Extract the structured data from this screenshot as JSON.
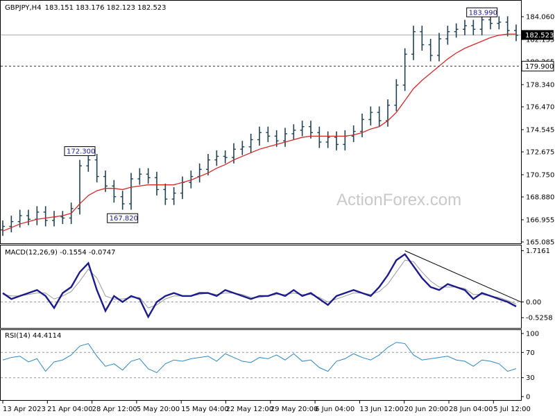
{
  "chart_data": [
    {
      "type": "candlestick",
      "panel": "price",
      "symbol_label": "GBPJPY,H4",
      "ohlc_label": "183.151 183.176 182.123 182.523",
      "ylim": [
        165.085,
        185.0
      ],
      "y_ticks": [
        "184.060",
        "182.135",
        "180.265",
        "178.340",
        "176.470",
        "174.545",
        "172.675",
        "170.750",
        "168.880",
        "166.955",
        "165.085"
      ],
      "price_marker": {
        "label": "182.523",
        "value": 182.523
      },
      "level_line": {
        "label": "179.900",
        "value": 179.9
      },
      "annotations": [
        {
          "label": "172.300",
          "value": 172.3,
          "index": 9
        },
        {
          "label": "167.820",
          "value": 167.82,
          "index": 14
        },
        {
          "label": "183.990",
          "value": 183.99,
          "index": 56
        }
      ],
      "close": [
        166.4,
        166.8,
        167.3,
        167.0,
        167.6,
        166.9,
        167.2,
        167.1,
        167.9,
        171.5,
        172.0,
        170.6,
        169.8,
        168.9,
        168.3,
        170.4,
        170.8,
        170.5,
        169.5,
        168.7,
        169.2,
        170.1,
        170.6,
        171.2,
        172.0,
        172.3,
        172.2,
        172.9,
        173.1,
        173.7,
        174.3,
        174.0,
        173.6,
        174.2,
        174.5,
        174.8,
        174.3,
        173.5,
        173.9,
        173.3,
        174.0,
        174.4,
        175.4,
        176.0,
        175.3,
        176.6,
        178.3,
        180.9,
        182.8,
        181.7,
        180.8,
        182.2,
        182.8,
        183.0,
        183.3,
        183.0,
        183.8,
        183.5,
        183.6,
        182.9,
        182.5
      ],
      "moving_average": [
        166.0,
        166.3,
        166.6,
        166.8,
        167.0,
        167.1,
        167.2,
        167.3,
        167.5,
        168.3,
        169.0,
        169.4,
        169.6,
        169.6,
        169.5,
        169.7,
        169.8,
        169.9,
        169.9,
        169.9,
        169.9,
        170.1,
        170.3,
        170.6,
        170.9,
        171.3,
        171.6,
        172.0,
        172.3,
        172.6,
        172.9,
        173.1,
        173.3,
        173.5,
        173.7,
        173.9,
        174.0,
        174.0,
        174.0,
        174.0,
        174.0,
        174.1,
        174.3,
        174.6,
        174.8,
        175.3,
        176.0,
        177.0,
        178.0,
        178.7,
        179.3,
        179.9,
        180.5,
        181.0,
        181.4,
        181.7,
        182.0,
        182.3,
        182.5,
        182.6,
        182.6
      ]
    },
    {
      "type": "line",
      "panel": "macd",
      "label": "MACD(12,26,9) -0.1554 -0.0747",
      "y_ticks": [
        "1.7161",
        "0.00",
        "-0.5258"
      ],
      "ylim": [
        -0.8,
        1.8
      ],
      "series": [
        {
          "values": [
            0.3,
            0.1,
            0.2,
            0.3,
            0.4,
            0.2,
            -0.2,
            0.3,
            0.5,
            1.0,
            1.3,
            0.4,
            -0.3,
            0.2,
            0.0,
            0.2,
            0.1,
            -0.5,
            0.0,
            0.2,
            0.3,
            0.2,
            0.2,
            0.3,
            0.3,
            0.2,
            0.4,
            0.3,
            0.2,
            0.1,
            0.2,
            0.2,
            0.3,
            0.2,
            0.4,
            0.2,
            0.3,
            0.1,
            -0.1,
            0.2,
            0.3,
            0.4,
            0.3,
            0.2,
            0.5,
            0.9,
            1.4,
            1.6,
            1.2,
            0.8,
            0.5,
            0.4,
            0.6,
            0.5,
            0.4,
            0.1,
            0.3,
            0.2,
            0.1,
            0.0,
            -0.15
          ]
        },
        {
          "values": [
            0.25,
            0.2,
            0.2,
            0.25,
            0.3,
            0.3,
            0.1,
            0.2,
            0.35,
            0.7,
            1.1,
            0.8,
            0.2,
            0.1,
            0.1,
            0.15,
            0.15,
            -0.2,
            -0.1,
            0.1,
            0.2,
            0.2,
            0.2,
            0.25,
            0.3,
            0.25,
            0.3,
            0.3,
            0.25,
            0.15,
            0.15,
            0.2,
            0.25,
            0.25,
            0.3,
            0.25,
            0.25,
            0.15,
            0.0,
            0.1,
            0.2,
            0.3,
            0.3,
            0.25,
            0.35,
            0.6,
            1.0,
            1.4,
            1.35,
            1.0,
            0.7,
            0.5,
            0.5,
            0.5,
            0.45,
            0.25,
            0.25,
            0.2,
            0.15,
            0.05,
            -0.07
          ]
        }
      ],
      "trendline": {
        "from_index": 47,
        "from_value": 1.7161,
        "to_index": 60,
        "to_value": 0.0
      }
    },
    {
      "type": "line",
      "panel": "rsi",
      "label": "RSI(14) 44.4114",
      "y_ticks": [
        "100",
        "70",
        "30",
        "0"
      ],
      "ylim": [
        0,
        100
      ],
      "reference_levels": [
        70,
        30
      ],
      "values": [
        58,
        62,
        64,
        55,
        60,
        40,
        55,
        58,
        66,
        80,
        84,
        64,
        48,
        52,
        42,
        56,
        60,
        44,
        38,
        52,
        58,
        56,
        60,
        62,
        64,
        56,
        68,
        62,
        56,
        54,
        62,
        60,
        66,
        58,
        68,
        56,
        58,
        46,
        40,
        56,
        60,
        68,
        62,
        58,
        66,
        78,
        86,
        84,
        66,
        58,
        60,
        62,
        64,
        58,
        56,
        48,
        58,
        56,
        52,
        40,
        44.4
      ]
    }
  ],
  "watermark": "ActionForex.com",
  "x_ticks": [
    "13 Apr 2023",
    "21 Apr 04:00",
    "28 Apr 12:00",
    "5 May 20:00",
    "15 May 04:00",
    "22 May 12:00",
    "29 May 20:00",
    "6 Jun 04:00",
    "13 Jun 12:00",
    "20 Jun 20:00",
    "28 Jun 04:00",
    "5 Jul 12:00"
  ],
  "colors": {
    "bars": "#1f4150",
    "moving_average": "#d42828",
    "macd": "#1a1a8c",
    "signal": "#9a9a9a",
    "rsi": "#2e86c1",
    "annotation_text": "#1a1aa0",
    "price_marker_bg": "#000000"
  }
}
